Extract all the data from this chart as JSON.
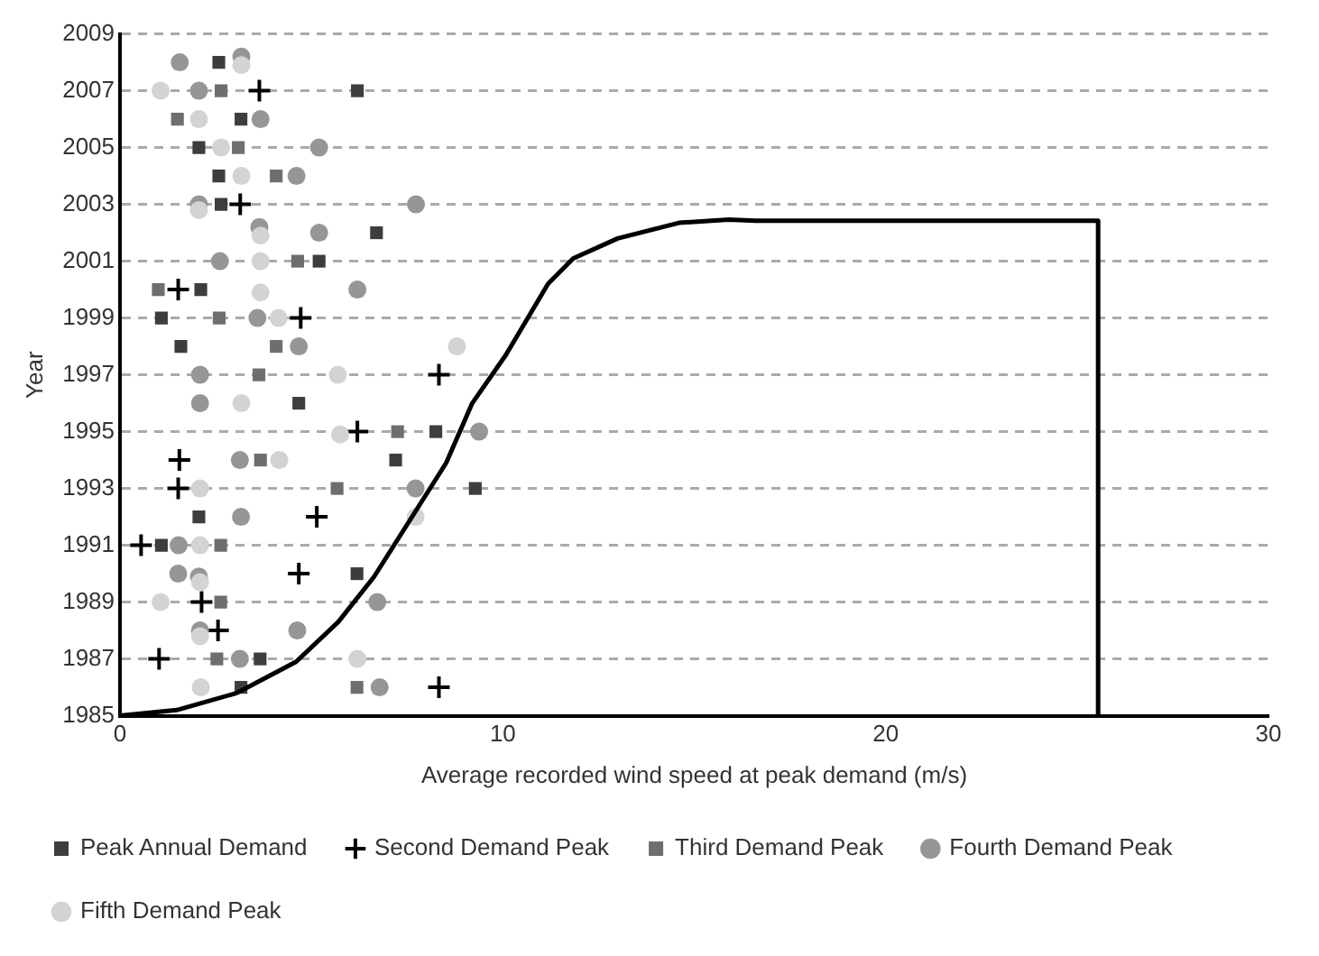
{
  "chart_data": {
    "type": "scatter",
    "xlabel": "Average recorded wind speed at peak demand (m/s)",
    "ylabel": "Year",
    "xlim": [
      0,
      30
    ],
    "xticks": [
      0,
      10,
      20,
      30
    ],
    "ylim": [
      1985,
      2009
    ],
    "yticks": [
      1985,
      1987,
      1989,
      1991,
      1993,
      1995,
      1997,
      1999,
      2001,
      2003,
      2005,
      2007,
      2009
    ],
    "grid": "y",
    "legend": "bottom",
    "series": [
      {
        "name": "Peak Annual Demand",
        "color": "#3d3d3d",
        "marker": "square",
        "x": [
          2.58,
          6.2,
          3.16,
          2.06,
          2.58,
          2.64,
          6.7,
          5.2,
          2.11,
          1.08,
          1.59,
          4.67,
          8.25,
          7.2,
          9.28,
          2.06,
          1.08,
          6.19,
          3.66,
          3.16
        ],
        "values": [
          2008,
          2007,
          2006,
          2005,
          2004,
          2003,
          2002,
          2001,
          2000,
          1999,
          1998,
          1996,
          1995,
          1994,
          1993,
          1992,
          1991,
          1990,
          1987,
          1986
        ]
      },
      {
        "name": "Second Demand Peak",
        "color": "#000000",
        "marker": "cross",
        "x": [
          3.64,
          3.14,
          1.52,
          4.72,
          8.33,
          6.2,
          1.55,
          1.52,
          5.14,
          0.55,
          4.67,
          2.13,
          2.56,
          1.02,
          8.33
        ],
        "values": [
          2007,
          2003,
          2000,
          1999,
          1997,
          1995,
          1994,
          1993,
          1992,
          1991,
          1990,
          1989,
          1988,
          1987,
          1986
        ]
      },
      {
        "name": "Third Demand Peak",
        "color": "#6e6e6e",
        "marker": "square",
        "x": [
          2.64,
          1.5,
          3.09,
          4.08,
          4.64,
          1.0,
          2.59,
          4.08,
          3.63,
          7.25,
          3.67,
          5.67,
          2.63,
          2.63,
          2.53,
          6.19
        ],
        "values": [
          2007,
          2006,
          2005,
          2004,
          2001,
          2000,
          1999,
          1998,
          1997,
          1995,
          1994,
          1993,
          1991,
          1989,
          1987,
          1986
        ]
      },
      {
        "name": "Fourth Demand Peak",
        "color": "#969696",
        "marker": "circle",
        "x": [
          1.56,
          3.17,
          2.06,
          3.67,
          5.2,
          4.61,
          2.06,
          7.73,
          3.64,
          5.2,
          2.61,
          6.2,
          3.59,
          4.67,
          2.09,
          2.09,
          9.38,
          3.13,
          7.72,
          3.16,
          1.53,
          1.52,
          2.06,
          6.72,
          2.09,
          4.63,
          3.13,
          6.78
        ],
        "values": [
          2008,
          2008.2,
          2007,
          2006,
          2005,
          2004,
          2003,
          2003,
          2002.2,
          2002,
          2001,
          2000,
          1999,
          1998,
          1997,
          1996,
          1995,
          1994,
          1993,
          1992,
          1991,
          1990,
          1989.9,
          1989,
          1988,
          1988,
          1987,
          1986
        ]
      },
      {
        "name": "Fifth Demand Peak",
        "color": "#d3d3d3",
        "marker": "circle",
        "x": [
          3.17,
          1.06,
          2.06,
          2.64,
          3.17,
          2.06,
          3.67,
          3.67,
          3.67,
          4.14,
          8.8,
          5.69,
          3.17,
          5.75,
          4.16,
          2.09,
          7.72,
          2.09,
          2.09,
          1.06,
          2.09,
          6.2,
          2.11
        ],
        "values": [
          2007.9,
          2007,
          2006,
          2005,
          2004,
          2002.8,
          2001.9,
          2001,
          1999.9,
          1999,
          1998,
          1997,
          1996,
          1994.9,
          1994,
          1993,
          1992,
          1991,
          1989.7,
          1989,
          1987.8,
          1987,
          1986
        ]
      },
      {
        "type": "line",
        "color": "#000000",
        "marker": "none",
        "x": [
          0,
          1.48,
          3.05,
          4.6,
          5.7,
          6.64,
          7.58,
          8.52,
          9.2,
          10.08,
          11.18,
          11.84,
          13.0,
          14.6,
          15.9,
          16.6,
          25.55,
          25.55
        ],
        "values": [
          1985,
          1985.2,
          1985.8,
          1986.9,
          1988.3,
          1989.9,
          1991.9,
          1993.9,
          1996,
          1997.7,
          2000.2,
          2001.1,
          2001.8,
          2002.35,
          2002.46,
          2002.42,
          2002.42,
          1985
        ]
      }
    ]
  }
}
